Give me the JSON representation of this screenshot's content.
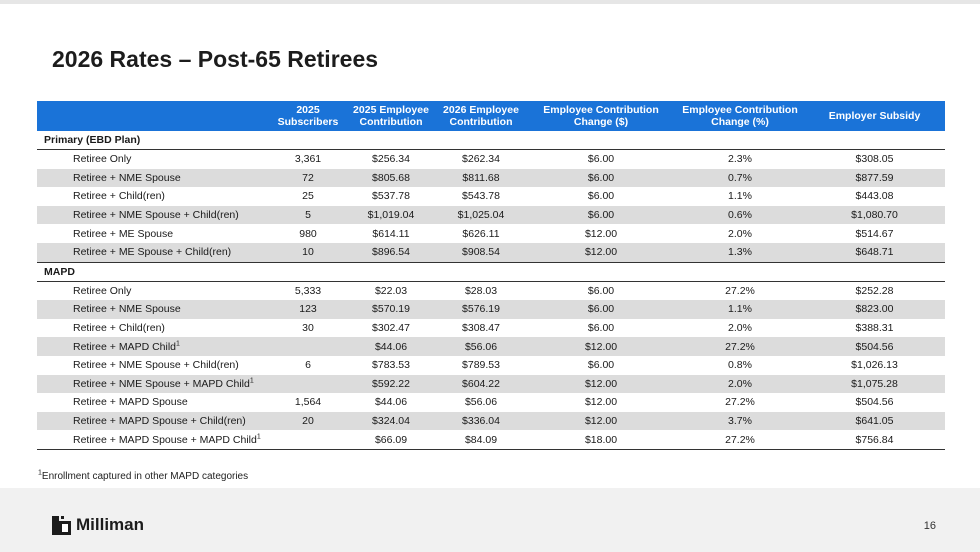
{
  "slide": {
    "title": "2026 Rates – Post-65 Retirees",
    "page_number": "16",
    "footnote_marker": "1",
    "footnote_text": "Enrollment captured in other MAPD categories",
    "logo_text": "Milliman"
  },
  "table": {
    "headers": [
      "",
      "2025 Subscribers",
      "2025 Employee Contribution",
      "2026 Employee Contribution",
      "Employee Contribution Change ($)",
      "Employee Contribution Change (%)",
      "Employer Subsidy"
    ],
    "sections": [
      {
        "name": "Primary (EBD Plan)",
        "rows": [
          {
            "label": "Retiree Only",
            "sup": "",
            "subscribers": "3,361",
            "contrib_2025": "$256.34",
            "contrib_2026": "$262.34",
            "change_dollar": "$6.00",
            "change_pct": "2.3%",
            "subsidy": "$308.05"
          },
          {
            "label": "Retiree + NME Spouse",
            "sup": "",
            "subscribers": "72",
            "contrib_2025": "$805.68",
            "contrib_2026": "$811.68",
            "change_dollar": "$6.00",
            "change_pct": "0.7%",
            "subsidy": "$877.59"
          },
          {
            "label": "Retiree + Child(ren)",
            "sup": "",
            "subscribers": "25",
            "contrib_2025": "$537.78",
            "contrib_2026": "$543.78",
            "change_dollar": "$6.00",
            "change_pct": "1.1%",
            "subsidy": "$443.08"
          },
          {
            "label": "Retiree + NME Spouse + Child(ren)",
            "sup": "",
            "subscribers": "5",
            "contrib_2025": "$1,019.04",
            "contrib_2026": "$1,025.04",
            "change_dollar": "$6.00",
            "change_pct": "0.6%",
            "subsidy": "$1,080.70"
          },
          {
            "label": "Retiree + ME Spouse",
            "sup": "",
            "subscribers": "980",
            "contrib_2025": "$614.11",
            "contrib_2026": "$626.11",
            "change_dollar": "$12.00",
            "change_pct": "2.0%",
            "subsidy": "$514.67"
          },
          {
            "label": "Retiree + ME Spouse + Child(ren)",
            "sup": "",
            "subscribers": "10",
            "contrib_2025": "$896.54",
            "contrib_2026": "$908.54",
            "change_dollar": "$12.00",
            "change_pct": "1.3%",
            "subsidy": "$648.71"
          }
        ]
      },
      {
        "name": "MAPD",
        "rows": [
          {
            "label": "Retiree Only",
            "sup": "",
            "subscribers": "5,333",
            "contrib_2025": "$22.03",
            "contrib_2026": "$28.03",
            "change_dollar": "$6.00",
            "change_pct": "27.2%",
            "subsidy": "$252.28"
          },
          {
            "label": "Retiree + NME Spouse",
            "sup": "",
            "subscribers": "123",
            "contrib_2025": "$570.19",
            "contrib_2026": "$576.19",
            "change_dollar": "$6.00",
            "change_pct": "1.1%",
            "subsidy": "$823.00"
          },
          {
            "label": "Retiree + Child(ren)",
            "sup": "",
            "subscribers": "30",
            "contrib_2025": "$302.47",
            "contrib_2026": "$308.47",
            "change_dollar": "$6.00",
            "change_pct": "2.0%",
            "subsidy": "$388.31"
          },
          {
            "label": "Retiree + MAPD Child",
            "sup": "1",
            "subscribers": "",
            "contrib_2025": "$44.06",
            "contrib_2026": "$56.06",
            "change_dollar": "$12.00",
            "change_pct": "27.2%",
            "subsidy": "$504.56"
          },
          {
            "label": "Retiree + NME Spouse + Child(ren)",
            "sup": "",
            "subscribers": "6",
            "contrib_2025": "$783.53",
            "contrib_2026": "$789.53",
            "change_dollar": "$6.00",
            "change_pct": "0.8%",
            "subsidy": "$1,026.13"
          },
          {
            "label": "Retiree + NME Spouse + MAPD Child",
            "sup": "1",
            "subscribers": "",
            "contrib_2025": "$592.22",
            "contrib_2026": "$604.22",
            "change_dollar": "$12.00",
            "change_pct": "2.0%",
            "subsidy": "$1,075.28"
          },
          {
            "label": "Retiree + MAPD Spouse",
            "sup": "",
            "subscribers": "1,564",
            "contrib_2025": "$44.06",
            "contrib_2026": "$56.06",
            "change_dollar": "$12.00",
            "change_pct": "27.2%",
            "subsidy": "$504.56"
          },
          {
            "label": "Retiree + MAPD Spouse + Child(ren)",
            "sup": "",
            "subscribers": "20",
            "contrib_2025": "$324.04",
            "contrib_2026": "$336.04",
            "change_dollar": "$12.00",
            "change_pct": "3.7%",
            "subsidy": "$641.05"
          },
          {
            "label": "Retiree + MAPD Spouse + MAPD Child",
            "sup": "1",
            "subscribers": "",
            "contrib_2025": "$66.09",
            "contrib_2026": "$84.09",
            "change_dollar": "$18.00",
            "change_pct": "27.2%",
            "subsidy": "$756.84"
          }
        ]
      }
    ]
  },
  "colors": {
    "header_blue": "#1a73d8",
    "row_shade": "#dcdcdc",
    "logo_dark": "#1c1c1c"
  },
  "icons": {
    "logo_mark": "milliman-logo-icon"
  }
}
